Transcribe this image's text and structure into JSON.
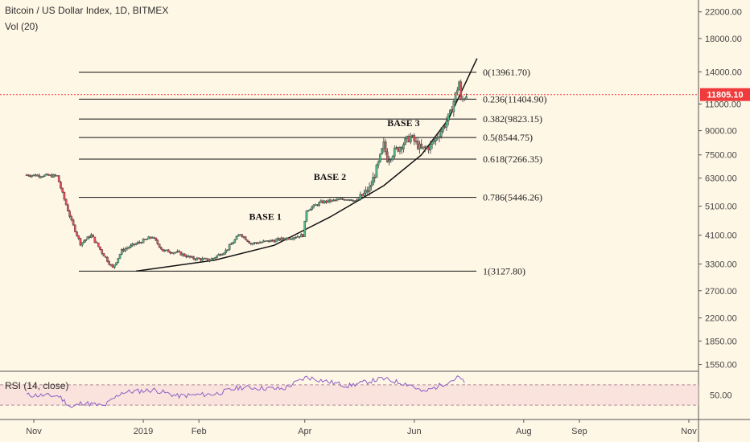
{
  "header": {
    "title": "Bitcoin / US Dollar Index, 1D, BITMEX",
    "volume_label": "Vol (20)"
  },
  "rsi": {
    "label": "RSI (14, close)",
    "tick_label": "50.00",
    "colors": {
      "line": "#8e5fc6",
      "band": "#f6d6d6"
    }
  },
  "price_marker": {
    "value": 11805.1,
    "label": "11805.10",
    "color": "#ef3b3b"
  },
  "chart_data": {
    "type": "line",
    "scale": "log",
    "ylim": [
      1500,
      22500
    ],
    "y_ticks": [
      "22000.00",
      "18000.00",
      "14000.00",
      "11000.00",
      "9000.00",
      "7500.00",
      "6300.00",
      "5100.00",
      "4100.00",
      "3300.00",
      "2700.00",
      "2200.00",
      "1850.00",
      "1550.00"
    ],
    "x_ticks": [
      "Nov",
      "2019",
      "Feb",
      "Apr",
      "Jun",
      "Aug",
      "Sep",
      "Nov"
    ],
    "fib_levels": [
      {
        "label": "0(13961.70)",
        "value": 13961.7
      },
      {
        "label": "0.236(11404.90)",
        "value": 11404.9
      },
      {
        "label": "0.382(9823.15)",
        "value": 9823.15
      },
      {
        "label": "0.5(8544.75)",
        "value": 8544.75
      },
      {
        "label": "0.618(7266.35)",
        "value": 7266.35
      },
      {
        "label": "0.786(5446.26)",
        "value": 5446.26
      },
      {
        "label": "1(3127.80)",
        "value": 3127.8
      }
    ],
    "annotations": [
      "BASE 1",
      "BASE 2",
      "BASE 3"
    ],
    "colors": {
      "up": "#53b987",
      "down": "#eb4d5c",
      "wick": "#222222",
      "fib_line": "#111111",
      "curve": "#111111"
    },
    "price_path": [
      {
        "date": "2018-10-28",
        "price": 6450
      },
      {
        "date": "2018-11-14",
        "price": 6400
      },
      {
        "date": "2018-11-17",
        "price": 5600
      },
      {
        "date": "2018-11-22",
        "price": 4550
      },
      {
        "date": "2018-11-27",
        "price": 3850
      },
      {
        "date": "2018-12-03",
        "price": 4100
      },
      {
        "date": "2018-12-09",
        "price": 3600
      },
      {
        "date": "2018-12-15",
        "price": 3200
      },
      {
        "date": "2018-12-20",
        "price": 3650
      },
      {
        "date": "2018-12-26",
        "price": 3800
      },
      {
        "date": "2019-01-06",
        "price": 4050
      },
      {
        "date": "2019-01-12",
        "price": 3650
      },
      {
        "date": "2019-01-20",
        "price": 3600
      },
      {
        "date": "2019-01-28",
        "price": 3450
      },
      {
        "date": "2019-02-07",
        "price": 3400
      },
      {
        "date": "2019-02-16",
        "price": 3650
      },
      {
        "date": "2019-02-24",
        "price": 4150
      },
      {
        "date": "2019-03-02",
        "price": 3850
      },
      {
        "date": "2019-03-16",
        "price": 3950
      },
      {
        "date": "2019-03-31",
        "price": 4100
      },
      {
        "date": "2019-04-02",
        "price": 4950
      },
      {
        "date": "2019-04-10",
        "price": 5250
      },
      {
        "date": "2019-04-25",
        "price": 5400
      },
      {
        "date": "2019-04-30",
        "price": 5300
      },
      {
        "date": "2019-05-07",
        "price": 5800
      },
      {
        "date": "2019-05-12",
        "price": 7000
      },
      {
        "date": "2019-05-15",
        "price": 8100
      },
      {
        "date": "2019-05-17",
        "price": 7300
      },
      {
        "date": "2019-05-22",
        "price": 7800
      },
      {
        "date": "2019-05-30",
        "price": 8600
      },
      {
        "date": "2019-06-05",
        "price": 7800
      },
      {
        "date": "2019-06-10",
        "price": 8000
      },
      {
        "date": "2019-06-17",
        "price": 9200
      },
      {
        "date": "2019-06-21",
        "price": 10200
      },
      {
        "date": "2019-06-26",
        "price": 13000
      },
      {
        "date": "2019-06-27",
        "price": 11200
      },
      {
        "date": "2019-06-30",
        "price": 11805.1
      }
    ],
    "parabolic_curve": [
      {
        "date": "2018-12-28",
        "price": 3127.8
      },
      {
        "date": "2019-02-10",
        "price": 3400
      },
      {
        "date": "2019-03-15",
        "price": 3800
      },
      {
        "date": "2019-04-15",
        "price": 4700
      },
      {
        "date": "2019-05-15",
        "price": 5950
      },
      {
        "date": "2019-06-05",
        "price": 7500
      },
      {
        "date": "2019-06-20",
        "price": 9800
      },
      {
        "date": "2019-07-06",
        "price": 15500
      }
    ],
    "rsi_path": [
      {
        "date": "2018-10-28",
        "value": 50
      },
      {
        "date": "2018-11-15",
        "value": 48
      },
      {
        "date": "2018-11-22",
        "value": 25
      },
      {
        "date": "2018-11-28",
        "value": 35
      },
      {
        "date": "2018-12-10",
        "value": 28
      },
      {
        "date": "2018-12-20",
        "value": 55
      },
      {
        "date": "2019-01-07",
        "value": 60
      },
      {
        "date": "2019-01-20",
        "value": 48
      },
      {
        "date": "2019-02-10",
        "value": 52
      },
      {
        "date": "2019-02-24",
        "value": 65
      },
      {
        "date": "2019-03-20",
        "value": 62
      },
      {
        "date": "2019-04-02",
        "value": 85
      },
      {
        "date": "2019-04-25",
        "value": 68
      },
      {
        "date": "2019-05-14",
        "value": 82
      },
      {
        "date": "2019-05-30",
        "value": 70
      },
      {
        "date": "2019-06-06",
        "value": 55
      },
      {
        "date": "2019-06-26",
        "value": 85
      },
      {
        "date": "2019-06-30",
        "value": 68
      }
    ]
  }
}
